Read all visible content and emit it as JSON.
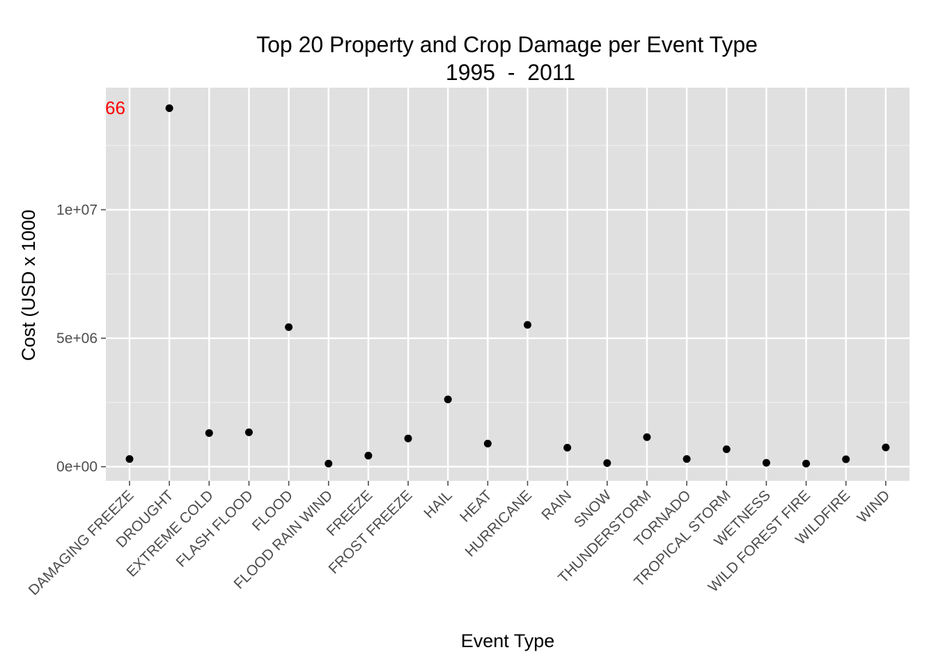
{
  "chart_data": {
    "type": "scatter",
    "title": "Top 20 Property and Crop Damage per Event Type",
    "subtitle": "1995  -  2011",
    "xlabel": "Event Type",
    "ylabel": "Cost (USD x 1000",
    "categories": [
      "DAMAGING FREEZE",
      "DROUGHT",
      "EXTREME COLD",
      "FLASH FLOOD",
      "FLOOD",
      "FLOOD RAIN WIND",
      "FREEZE",
      "FROST FREEZE",
      "HAIL",
      "HEAT",
      "HURRICANE",
      "RAIN",
      "SNOW",
      "THUNDERSTORM",
      "TORNADO",
      "TROPICAL STORM",
      "WETNESS",
      "WILD FOREST FIRE",
      "WILDFIRE",
      "WIND"
    ],
    "values": [
      300000,
      13950000,
      1310000,
      1340000,
      5430000,
      120000,
      430000,
      1100000,
      2620000,
      900000,
      5520000,
      740000,
      140000,
      1150000,
      300000,
      680000,
      150000,
      120000,
      290000,
      750000
    ],
    "y_ticks": [
      0,
      5000000,
      10000000
    ],
    "y_tick_labels": [
      "0e+00",
      "5e+06",
      "1e+07"
    ],
    "ylim": [
      -550000,
      14750000
    ],
    "grid": true,
    "annotation": {
      "text": "66",
      "color": "#ff0000"
    },
    "colors": {
      "panel": "#e0e0e0",
      "grid_major": "#ffffff",
      "grid_minor": "#f0f0f0",
      "point": "#000000",
      "tick": "#4d4d4d"
    }
  }
}
